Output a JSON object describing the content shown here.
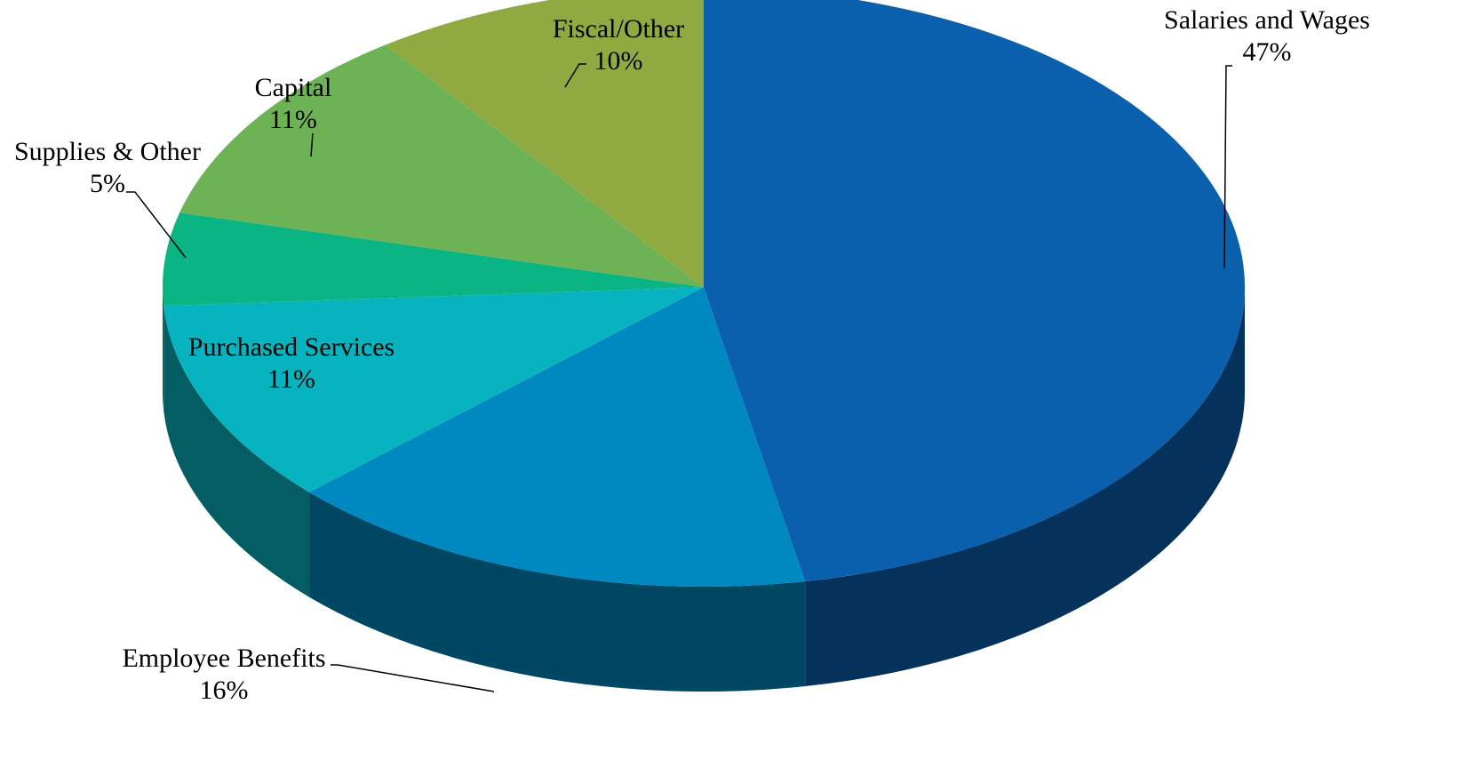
{
  "chart_data": {
    "type": "pie",
    "style": "3d",
    "title": "",
    "legend": "none",
    "data_labels": "category name and percentage",
    "slices": [
      {
        "name": "Salaries and Wages",
        "value": 47,
        "label": "47%",
        "color": "#0a60ad"
      },
      {
        "name": "Employee Benefits",
        "value": 16,
        "label": "16%",
        "color": "#0088c0"
      },
      {
        "name": "Purchased Services",
        "value": 11,
        "label": "11%",
        "color": "#07b3be"
      },
      {
        "name": "Supplies & Other",
        "value": 5,
        "label": "5%",
        "color": "#0bb483"
      },
      {
        "name": "Capital",
        "value": 11,
        "label": "11%",
        "color": "#6eb256"
      },
      {
        "name": "Fiscal/Other",
        "value": 10,
        "label": "10%",
        "color": "#91a941"
      }
    ]
  }
}
